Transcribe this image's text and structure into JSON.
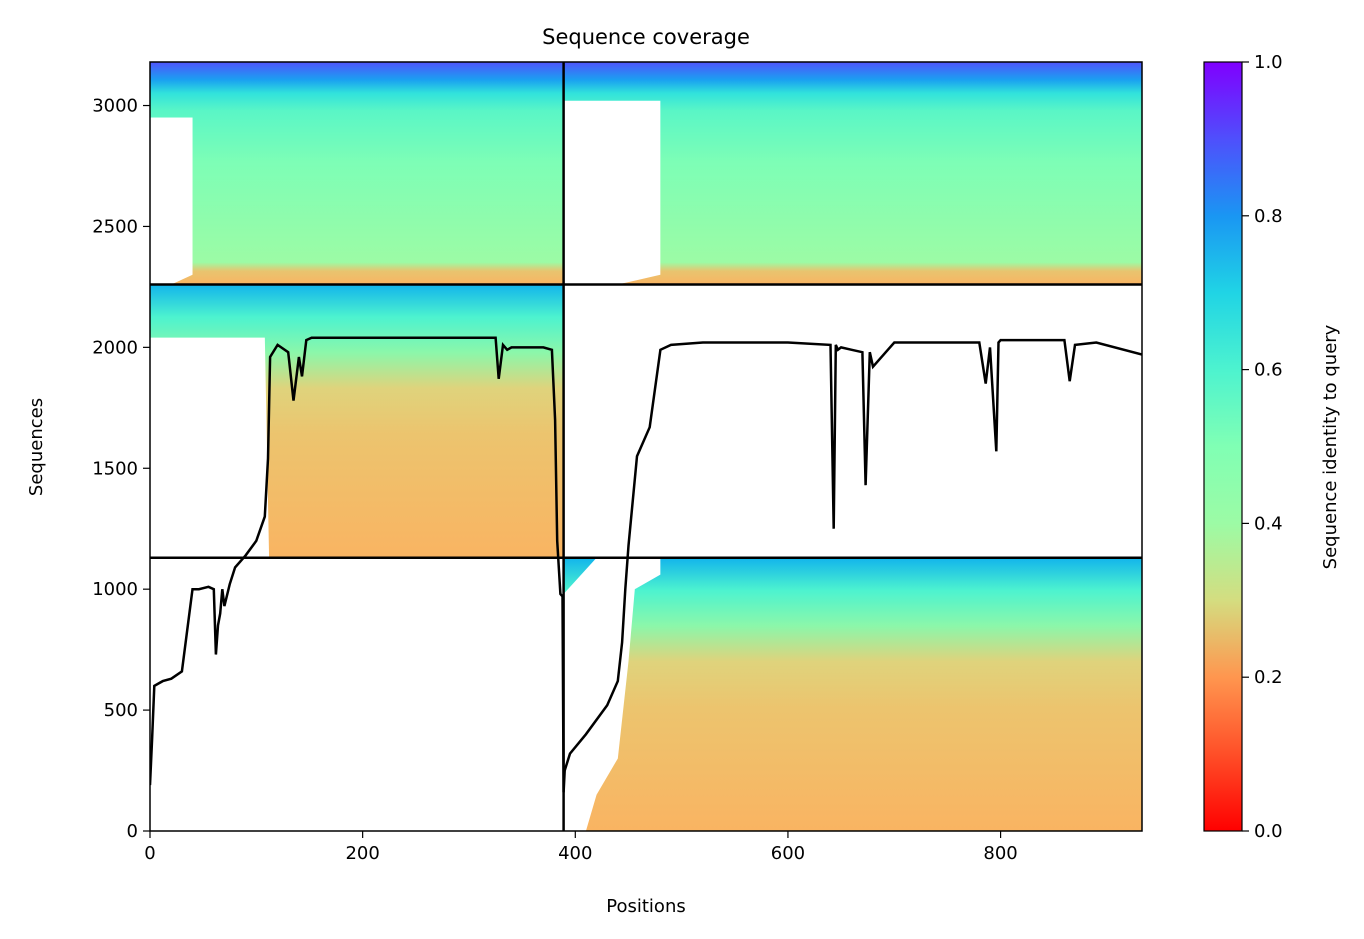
{
  "chart_data": {
    "type": "heatmap",
    "title": "Sequence coverage",
    "xlabel": "Positions",
    "ylabel": "Sequences",
    "xlim": [
      0,
      933
    ],
    "ylim": [
      0,
      3180
    ],
    "xticks": [
      0,
      200,
      400,
      600,
      800
    ],
    "yticks": [
      0,
      500,
      1000,
      1500,
      2000,
      2500,
      3000
    ],
    "colorbar": {
      "label": "Sequence identity to query",
      "colormap": "rainbow_r",
      "range": [
        0,
        1
      ],
      "ticks": [
        0.0,
        0.2,
        0.4,
        0.6,
        0.8,
        1.0
      ],
      "tick_labels": [
        "0.0",
        "0.2",
        "0.4",
        "0.6",
        "0.8",
        "1.0"
      ]
    },
    "chain_boundary_x": 389,
    "msa_blocks": [
      {
        "name": "block-bottom-right",
        "x": [
          389,
          933
        ],
        "y": [
          0,
          1130
        ],
        "identity_bottom": 0.26,
        "identity_top": 0.77
      },
      {
        "name": "block-middle-left",
        "x": [
          0,
          389
        ],
        "y": [
          1130,
          2260
        ],
        "identity_bottom": 0.26,
        "identity_top": 0.77
      },
      {
        "name": "block-top-left",
        "x": [
          0,
          389
        ],
        "y": [
          2260,
          3180
        ],
        "identity_bottom": 0.27,
        "identity_top": 0.88
      },
      {
        "name": "block-top-right",
        "x": [
          389,
          933
        ],
        "y": [
          2260,
          3180
        ],
        "identity_bottom": 0.27,
        "identity_top": 0.88
      }
    ],
    "coverage_line": {
      "x": [
        0,
        2,
        4,
        8,
        12,
        20,
        30,
        40,
        42,
        46,
        55,
        60,
        62,
        64,
        66,
        68,
        70,
        75,
        80,
        90,
        100,
        108,
        111,
        113,
        120,
        130,
        135,
        140,
        143,
        147,
        152,
        200,
        260,
        300,
        325,
        328,
        332,
        336,
        340,
        370,
        378,
        381,
        383,
        386,
        388,
        389,
        390,
        395,
        410,
        430,
        440,
        444,
        447,
        450,
        458,
        470,
        480,
        490,
        520,
        600,
        640,
        643,
        645,
        647,
        650,
        660,
        670,
        673,
        677,
        680,
        700,
        780,
        786,
        790,
        796,
        798,
        800,
        860,
        865,
        870,
        890,
        933
      ],
      "y": [
        190,
        380,
        600,
        610,
        620,
        630,
        660,
        1000,
        1000,
        1000,
        1010,
        1000,
        730,
        850,
        900,
        1000,
        930,
        1020,
        1090,
        1140,
        1200,
        1300,
        1540,
        1960,
        2010,
        1980,
        1780,
        1960,
        1880,
        2030,
        2040,
        2040,
        2040,
        2040,
        2040,
        1870,
        2010,
        1990,
        2000,
        2000,
        1990,
        1700,
        1200,
        980,
        970,
        160,
        250,
        320,
        400,
        520,
        620,
        780,
        1000,
        1180,
        1550,
        1670,
        1990,
        2010,
        2020,
        2020,
        2010,
        1250,
        2010,
        1990,
        2000,
        1990,
        1980,
        1430,
        1980,
        1920,
        2020,
        2020,
        1850,
        2000,
        1570,
        2020,
        2030,
        2030,
        1860,
        2010,
        2020,
        1970
      ]
    }
  }
}
